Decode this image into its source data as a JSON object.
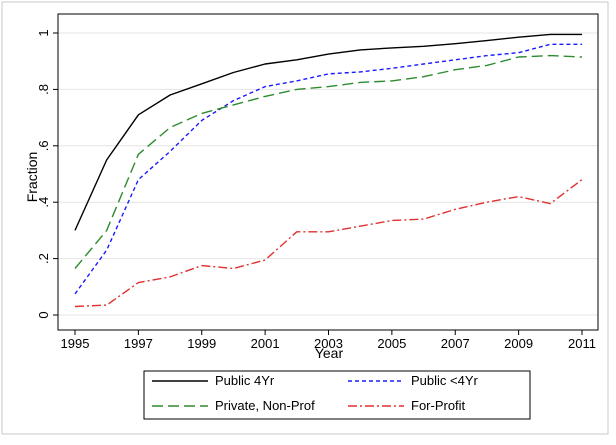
{
  "chart_data": {
    "type": "line",
    "title": "",
    "xlabel": "Year",
    "ylabel": "Fraction",
    "xlim": [
      1995,
      2011
    ],
    "ylim": [
      0,
      1
    ],
    "grid": "horizontal",
    "legend_position": "bottom",
    "x_ticks": [
      "1995",
      "1997",
      "1999",
      "2001",
      "2003",
      "2005",
      "2007",
      "2009",
      "2011"
    ],
    "y_ticks": [
      "0",
      ".2",
      ".4",
      ".6",
      ".8",
      "1"
    ],
    "x": [
      1995,
      1996,
      1997,
      1998,
      1999,
      2000,
      2001,
      2002,
      2003,
      2004,
      2005,
      2006,
      2007,
      2008,
      2009,
      2010,
      2011
    ],
    "series": [
      {
        "name": "Public 4Yr",
        "color": "#000000",
        "dash": "solid",
        "values": [
          0.3,
          0.55,
          0.71,
          0.78,
          0.82,
          0.86,
          0.89,
          0.905,
          0.925,
          0.94,
          0.947,
          0.953,
          0.962,
          0.973,
          0.985,
          0.995,
          0.995
        ]
      },
      {
        "name": "Public <4Yr",
        "color": "#1a1aff",
        "dash": "short-dash",
        "values": [
          0.075,
          0.23,
          0.48,
          0.58,
          0.69,
          0.76,
          0.81,
          0.83,
          0.855,
          0.862,
          0.875,
          0.89,
          0.905,
          0.92,
          0.93,
          0.96,
          0.96
        ]
      },
      {
        "name": "Private, Non-Prof",
        "color": "#2e8b2e",
        "dash": "long-dash",
        "values": [
          0.165,
          0.3,
          0.57,
          0.665,
          0.715,
          0.745,
          0.775,
          0.8,
          0.81,
          0.825,
          0.83,
          0.845,
          0.87,
          0.885,
          0.915,
          0.92,
          0.915
        ]
      },
      {
        "name": "For-Profit",
        "color": "#e03030",
        "dash": "dash-dot",
        "values": [
          0.03,
          0.035,
          0.115,
          0.135,
          0.175,
          0.165,
          0.195,
          0.295,
          0.295,
          0.315,
          0.335,
          0.34,
          0.375,
          0.4,
          0.42,
          0.395,
          0.48
        ]
      }
    ]
  }
}
